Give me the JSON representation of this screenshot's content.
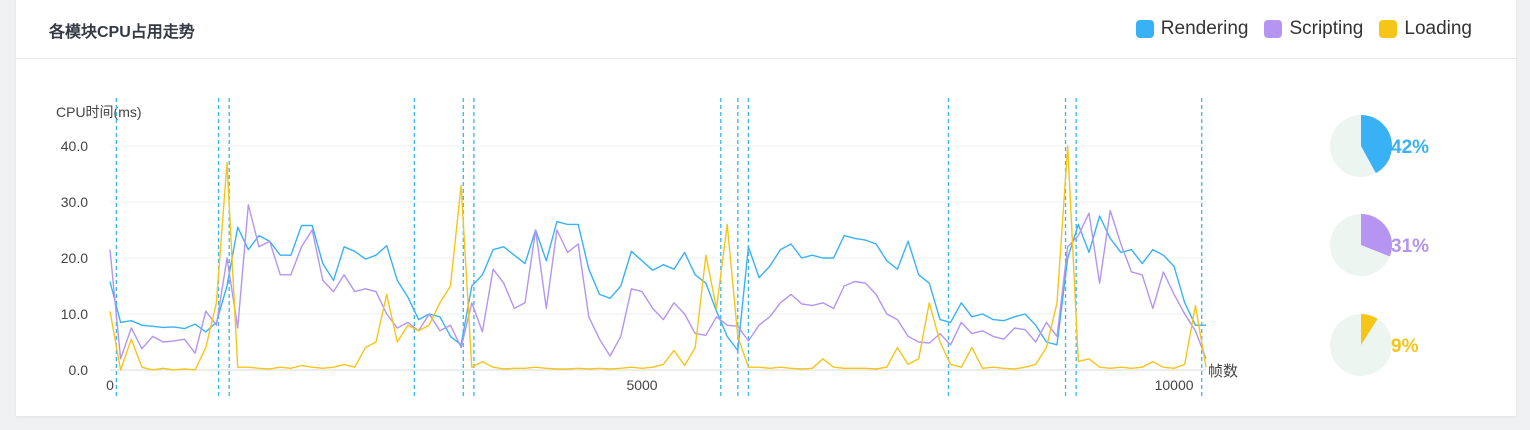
{
  "title": "各模块CPU占用走势",
  "chart_data": {
    "type": "line",
    "ylabel": "CPU时间(ms)",
    "xlabel": "帧数",
    "xlim": [
      0,
      10300
    ],
    "ylim": [
      0,
      40
    ],
    "yticks": [
      {
        "value": 0,
        "label": "0.0"
      },
      {
        "value": 10,
        "label": "10.0"
      },
      {
        "value": 20,
        "label": "20.0"
      },
      {
        "value": 30,
        "label": "30.0"
      },
      {
        "value": 40,
        "label": "40.0"
      }
    ],
    "xticks": [
      {
        "value": 0,
        "label": "0"
      },
      {
        "value": 5000,
        "label": "5000"
      },
      {
        "value": 10000,
        "label": "10000"
      }
    ],
    "markers_x": [
      60,
      1020,
      1120,
      2860,
      3320,
      3420,
      5740,
      5900,
      6000,
      7880,
      8980,
      9080,
      10260
    ],
    "legend": [
      {
        "name": "Rendering",
        "color": "#38b2f5"
      },
      {
        "name": "Scripting",
        "color": "#b594f2"
      },
      {
        "name": "Loading",
        "color": "#f5c518"
      }
    ],
    "series": [
      {
        "name": "Rendering",
        "color": "#38b2f5",
        "x": [
          0,
          100,
          200,
          300,
          400,
          500,
          600,
          700,
          800,
          900,
          1000,
          1100,
          1200,
          1300,
          1400,
          1500,
          1600,
          1700,
          1800,
          1900,
          2000,
          2100,
          2200,
          2300,
          2400,
          2500,
          2600,
          2700,
          2800,
          2900,
          3000,
          3100,
          3200,
          3300,
          3400,
          3500,
          3600,
          3700,
          3800,
          3900,
          4000,
          4100,
          4200,
          4300,
          4400,
          4500,
          4600,
          4700,
          4800,
          4900,
          5000,
          5100,
          5200,
          5300,
          5400,
          5500,
          5600,
          5700,
          5800,
          5900,
          6000,
          6100,
          6200,
          6300,
          6400,
          6500,
          6600,
          6700,
          6800,
          6900,
          7000,
          7100,
          7200,
          7300,
          7400,
          7500,
          7600,
          7700,
          7800,
          7900,
          8000,
          8100,
          8200,
          8300,
          8400,
          8500,
          8600,
          8700,
          8800,
          8900,
          9000,
          9100,
          9200,
          9300,
          9400,
          9500,
          9600,
          9700,
          9800,
          9900,
          10000,
          10100,
          10200,
          10300
        ],
        "values": [
          15.8,
          8.5,
          8.8,
          8,
          7.8,
          7.6,
          7.7,
          7.4,
          8.2,
          6.8,
          8.5,
          15,
          25.5,
          21.5,
          24,
          23,
          20.5,
          20.5,
          25.8,
          25.8,
          19,
          16,
          22,
          21.2,
          19.8,
          20.5,
          22.2,
          16,
          13,
          9,
          10,
          9.5,
          6,
          4.5,
          15,
          17,
          21.5,
          22,
          20.5,
          19,
          25,
          19.5,
          26.5,
          26,
          26,
          18,
          13.5,
          12.8,
          15,
          21.2,
          19.5,
          17.8,
          18.8,
          18,
          21,
          17,
          15.5,
          10.5,
          6,
          3.5,
          22,
          16.5,
          18.5,
          21.5,
          22.5,
          20,
          20.5,
          20,
          20,
          24,
          23.5,
          23.2,
          22.5,
          19.5,
          18,
          23,
          17,
          15.5,
          9,
          8.5,
          12,
          9.5,
          10,
          9,
          8.8,
          9.5,
          10,
          8,
          5,
          4.5,
          20,
          26,
          21,
          27.5,
          23.5,
          21,
          21.5,
          19,
          21.5,
          20.5,
          18.5,
          12,
          8,
          8
        ]
      },
      {
        "name": "Scripting",
        "color": "#b594f2",
        "x": [
          0,
          100,
          200,
          300,
          400,
          500,
          600,
          700,
          800,
          900,
          1000,
          1100,
          1200,
          1300,
          1400,
          1500,
          1600,
          1700,
          1800,
          1900,
          2000,
          2100,
          2200,
          2300,
          2400,
          2500,
          2600,
          2700,
          2800,
          2900,
          3000,
          3100,
          3200,
          3300,
          3400,
          3500,
          3600,
          3700,
          3800,
          3900,
          4000,
          4100,
          4200,
          4300,
          4400,
          4500,
          4600,
          4700,
          4800,
          4900,
          5000,
          5100,
          5200,
          5300,
          5400,
          5500,
          5600,
          5700,
          5800,
          5900,
          6000,
          6100,
          6200,
          6300,
          6400,
          6500,
          6600,
          6700,
          6800,
          6900,
          7000,
          7100,
          7200,
          7300,
          7400,
          7500,
          7600,
          7700,
          7800,
          7900,
          8000,
          8100,
          8200,
          8300,
          8400,
          8500,
          8600,
          8700,
          8800,
          8900,
          9000,
          9100,
          9200,
          9300,
          9400,
          9500,
          9600,
          9700,
          9800,
          9900,
          10000,
          10100,
          10200,
          10300
        ],
        "values": [
          21.5,
          2,
          7.5,
          3.8,
          6,
          5,
          5.2,
          5.5,
          3,
          10.5,
          8,
          20,
          7.5,
          29.5,
          22,
          23,
          17,
          17,
          22,
          25,
          16,
          14,
          17,
          14,
          14.5,
          14,
          10,
          7.5,
          8.5,
          7,
          10,
          7,
          8,
          4,
          12,
          6.8,
          18,
          15.5,
          11,
          12,
          25,
          11,
          25,
          21,
          22.5,
          9.5,
          5.5,
          2.5,
          6,
          14.5,
          14,
          11,
          9,
          12,
          10,
          6.5,
          6.2,
          9.5,
          8,
          7.8,
          5.2,
          8,
          9.5,
          12,
          13.5,
          11.8,
          11.5,
          12,
          11,
          15,
          15.8,
          15.5,
          13.5,
          10,
          9,
          6,
          5,
          4.8,
          6.5,
          4.5,
          8.5,
          6.5,
          7,
          6,
          5.5,
          7.5,
          7.2,
          5,
          8.5,
          6,
          22,
          24,
          28,
          15.5,
          28.5,
          22.5,
          17.5,
          17,
          11,
          17.5,
          13.5,
          10,
          7,
          2
        ]
      },
      {
        "name": "Loading",
        "color": "#f5c518",
        "x": [
          0,
          100,
          200,
          300,
          400,
          500,
          600,
          700,
          800,
          900,
          1000,
          1100,
          1200,
          1300,
          1400,
          1500,
          1600,
          1700,
          1800,
          1900,
          2000,
          2100,
          2200,
          2300,
          2400,
          2500,
          2600,
          2700,
          2800,
          2900,
          3000,
          3100,
          3200,
          3300,
          3400,
          3500,
          3600,
          3700,
          3800,
          3900,
          4000,
          4100,
          4200,
          4300,
          4400,
          4500,
          4600,
          4700,
          4800,
          4900,
          5000,
          5100,
          5200,
          5300,
          5400,
          5500,
          5600,
          5700,
          5800,
          5900,
          6000,
          6100,
          6200,
          6300,
          6400,
          6500,
          6600,
          6700,
          6800,
          6900,
          7000,
          7100,
          7200,
          7300,
          7400,
          7500,
          7600,
          7700,
          7800,
          7900,
          8000,
          8100,
          8200,
          8300,
          8400,
          8500,
          8600,
          8700,
          8800,
          8900,
          9000,
          9100,
          9200,
          9300,
          9400,
          9500,
          9600,
          9700,
          9800,
          9900,
          10000,
          10100,
          10200,
          10300
        ],
        "values": [
          10.5,
          0,
          5.5,
          0.5,
          0,
          0.3,
          0,
          0.2,
          0,
          4,
          12,
          37,
          0.5,
          0.5,
          0.3,
          0.2,
          0.5,
          0.3,
          0.8,
          0.5,
          0.3,
          0.5,
          1,
          0.5,
          4,
          5,
          13.5,
          5,
          8,
          7,
          8,
          12,
          15,
          33,
          0.5,
          1.5,
          0.5,
          0.2,
          0.3,
          0.3,
          0.5,
          0.3,
          0.2,
          0.2,
          0.3,
          0.2,
          0.3,
          0.2,
          0.3,
          0.5,
          0.3,
          0.5,
          1,
          3.5,
          0.8,
          4,
          20.5,
          11,
          26,
          6,
          0.5,
          0.5,
          0.3,
          0.5,
          0.3,
          0.2,
          0.3,
          2,
          0.5,
          0.3,
          0.3,
          0.3,
          0.2,
          0.5,
          4,
          1,
          2,
          12,
          5,
          1,
          0.5,
          4,
          0.3,
          0.5,
          0.3,
          0.2,
          0.5,
          1,
          4,
          12,
          40,
          1.5,
          2,
          0.5,
          0.3,
          0.5,
          0.3,
          0.5,
          1.5,
          0.5,
          0.3,
          1,
          11.5,
          0.5
        ]
      }
    ],
    "pies": [
      {
        "name": "Rendering",
        "value": 42,
        "label": "42%",
        "color": "#38b2f5"
      },
      {
        "name": "Scripting",
        "value": 31,
        "label": "31%",
        "color": "#b594f2"
      },
      {
        "name": "Loading",
        "value": 9,
        "label": "9%",
        "color": "#f5c518"
      }
    ]
  }
}
